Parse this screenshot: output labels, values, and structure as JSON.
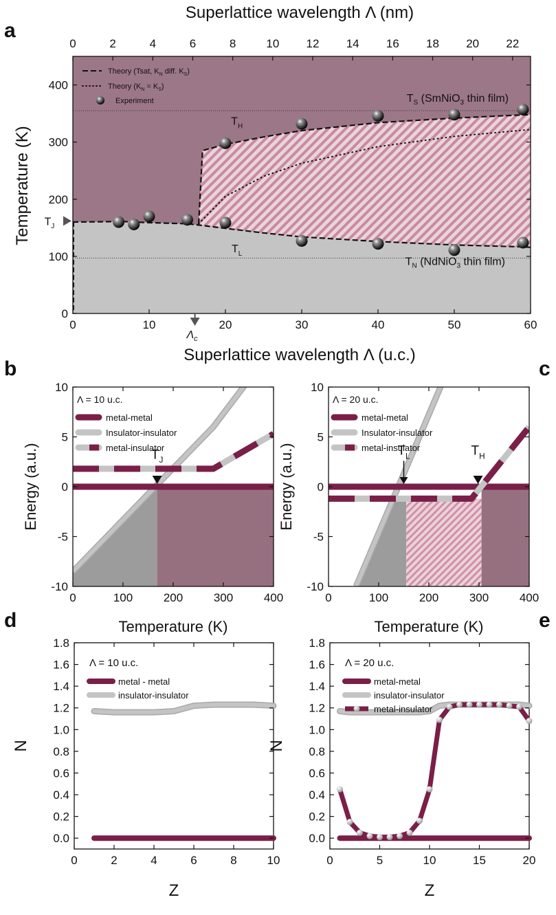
{
  "colors": {
    "metal": "#7a1f48",
    "insulator": "#c4c4c4",
    "phase_top": "#9c7788",
    "phase_bottom": "#c4c4c4",
    "hatch": "#c98aa0",
    "dark_gray": "#8e8e8e"
  },
  "chart_data": [
    {
      "panel": "a",
      "type": "scatter",
      "xlabel": "Superlattice wavelength Λ (u.c.)",
      "x2label": "Superlattice wavelength Λ (nm)",
      "ylabel": "Temperature (K)",
      "xlim": [
        0,
        60
      ],
      "x2lim": [
        0,
        22.9
      ],
      "ylim": [
        0,
        450
      ],
      "xticks": [
        0,
        10,
        20,
        30,
        40,
        50,
        60
      ],
      "x2ticks": [
        0,
        2,
        4,
        6,
        8,
        10,
        12,
        14,
        16,
        18,
        20,
        22
      ],
      "yticks": [
        0,
        100,
        200,
        300,
        400
      ],
      "legend": [
        "Theory (Tsat, K_N diff. K_S)",
        "Theory (K_N = K_S)",
        "Experiment"
      ],
      "legend_pos": "top-left",
      "experiment_points": [
        [
          6,
          160
        ],
        [
          8,
          156
        ],
        [
          10,
          170
        ],
        [
          15,
          164
        ],
        [
          20,
          159
        ],
        [
          20,
          298
        ],
        [
          30,
          127
        ],
        [
          30,
          332
        ],
        [
          40,
          122
        ],
        [
          40,
          346
        ],
        [
          50,
          111
        ],
        [
          50,
          348
        ],
        [
          59,
          124
        ],
        [
          59,
          357
        ]
      ],
      "TS_line": 355,
      "TN_line": 97,
      "lambda_c": 16,
      "theory_dashed_low": [
        [
          0,
          160
        ],
        [
          6.5,
          161
        ],
        [
          10,
          159
        ],
        [
          15,
          157
        ],
        [
          17,
          154
        ],
        [
          20,
          149
        ],
        [
          25,
          141
        ],
        [
          30,
          134
        ],
        [
          40,
          126
        ],
        [
          50,
          120
        ],
        [
          58,
          117
        ],
        [
          60,
          116
        ]
      ],
      "theory_dashed_high": [
        [
          17,
          285
        ],
        [
          20,
          296
        ],
        [
          25,
          309
        ],
        [
          30,
          320
        ],
        [
          40,
          334
        ],
        [
          50,
          342
        ],
        [
          58,
          347
        ],
        [
          60,
          348
        ]
      ],
      "theory_dashed_jump": [
        [
          16.5,
          157
        ],
        [
          17,
          285
        ]
      ],
      "theory_dotted": [
        [
          16.5,
          157
        ],
        [
          20,
          205
        ],
        [
          25,
          240
        ],
        [
          30,
          263
        ],
        [
          40,
          292
        ],
        [
          50,
          310
        ],
        [
          60,
          322
        ]
      ],
      "annotations": {
        "TS_label": "T",
        "TS_sub": "S",
        "TS_rest": " (SmNiO",
        "TS_sub3": "3",
        "TS_end": " thin film)",
        "TN_label": "T",
        "TN_sub": "N",
        "TN_rest": " (NdNiO",
        "TN_sub3": "3",
        "TN_end": " thin film)",
        "TH": "T",
        "TH_sub": "H",
        "TL": "T",
        "TL_sub": "L",
        "TJ": "T",
        "TJ_sub": "J",
        "lambda_c": "Λ",
        "lambda_c_sub": "c"
      }
    },
    {
      "panel": "b",
      "type": "line",
      "xlabel": "Temperature (K)",
      "ylabel": "Energy (a.u.)",
      "xlim": [
        0,
        400
      ],
      "ylim": [
        -10,
        10
      ],
      "xticks": [
        0,
        100,
        200,
        300,
        400
      ],
      "yticks": [
        -10,
        -5,
        0,
        5,
        10
      ],
      "legend_title": "Λ = 10 u.c.",
      "series": [
        {
          "name": "metal-metal",
          "x": [
            0,
            400
          ],
          "y": [
            0,
            0
          ]
        },
        {
          "name": "Insulator-insulator",
          "x": [
            0,
            280,
            400
          ],
          "y": [
            -8.5,
            6,
            14
          ]
        },
        {
          "name": "metal-insulator",
          "x": [
            0,
            280,
            400
          ],
          "y": [
            1.8,
            1.8,
            5.3
          ]
        }
      ],
      "regions": [
        {
          "from": 0,
          "to": 168,
          "fill": "insulator"
        },
        {
          "from": 168,
          "to": 400,
          "fill": "metal"
        }
      ],
      "annotation": {
        "TJ": "T",
        "TJ_sub": "J",
        "x": 168
      }
    },
    {
      "panel": "c",
      "type": "line",
      "xlabel": "Temperature (K)",
      "ylabel": "Energy (a.u.)",
      "xlim": [
        0,
        400
      ],
      "ylim": [
        -10,
        10
      ],
      "xticks": [
        0,
        100,
        200,
        300,
        400
      ],
      "yticks": [
        -10,
        -5,
        0,
        5,
        10
      ],
      "legend_title": "Λ = 20 u.c.",
      "series": [
        {
          "name": "metal-metal",
          "x": [
            0,
            400
          ],
          "y": [
            0,
            0
          ]
        },
        {
          "name": "Insulator-insulator",
          "x": [
            55,
            240
          ],
          "y": [
            -10,
            12
          ]
        },
        {
          "name": "metal-insulator",
          "x": [
            0,
            285,
            400
          ],
          "y": [
            -1.2,
            -1.2,
            6
          ]
        }
      ],
      "regions": [
        {
          "from": 0,
          "to": 155,
          "fill": "insulator"
        },
        {
          "from": 155,
          "to": 305,
          "fill": "hatch"
        },
        {
          "from": 305,
          "to": 400,
          "fill": "metal"
        }
      ],
      "annotation": {
        "TL": "T",
        "TL_sub": "L",
        "TL_x": 150,
        "TH": "T",
        "TH_sub": "H",
        "TH_x": 298
      }
    },
    {
      "panel": "d",
      "type": "line",
      "xlabel": "Z",
      "ylabel": "N",
      "xlim": [
        0,
        10
      ],
      "ylim": [
        -0.1,
        1.8
      ],
      "xticks": [
        0,
        2,
        4,
        6,
        8,
        10
      ],
      "yticks": [
        0.0,
        0.2,
        0.4,
        0.6,
        0.8,
        1.0,
        1.2,
        1.4,
        1.6,
        1.8
      ],
      "legend_title": "Λ = 10 u.c.",
      "series": [
        {
          "name": "metal - metal",
          "x": [
            1,
            10
          ],
          "y": [
            0,
            0
          ]
        },
        {
          "name": "insulator-insulator",
          "x": [
            1,
            2,
            3,
            4,
            5,
            6,
            7,
            8,
            9,
            10
          ],
          "y": [
            1.17,
            1.16,
            1.16,
            1.16,
            1.17,
            1.22,
            1.23,
            1.23,
            1.23,
            1.22
          ]
        }
      ]
    },
    {
      "panel": "e",
      "type": "line",
      "xlabel": "Z",
      "ylabel": "N",
      "xlim": [
        0,
        20
      ],
      "ylim": [
        -0.1,
        1.8
      ],
      "xticks": [
        0,
        5,
        10,
        15,
        20
      ],
      "yticks": [
        0.0,
        0.2,
        0.4,
        0.6,
        0.8,
        1.0,
        1.2,
        1.4,
        1.6,
        1.8
      ],
      "legend_title": "Λ = 20 u.c.",
      "series": [
        {
          "name": "metal-metal",
          "x": [
            1,
            20
          ],
          "y": [
            0,
            0
          ]
        },
        {
          "name": "insulator-insulator",
          "x": [
            1,
            2,
            3,
            4,
            5,
            6,
            7,
            8,
            9,
            10,
            11,
            12,
            13,
            14,
            15,
            16,
            17,
            18,
            19,
            20
          ],
          "y": [
            1.17,
            1.16,
            1.16,
            1.16,
            1.16,
            1.16,
            1.16,
            1.16,
            1.16,
            1.17,
            1.22,
            1.23,
            1.23,
            1.23,
            1.23,
            1.23,
            1.23,
            1.23,
            1.23,
            1.22
          ]
        },
        {
          "name": "metal-insulator",
          "x": [
            1,
            2,
            3,
            4,
            5,
            6,
            7,
            8,
            9,
            10,
            11,
            12,
            13,
            14,
            15,
            16,
            17,
            18,
            19,
            20
          ],
          "y": [
            0.45,
            0.15,
            0.05,
            0.02,
            0.01,
            0.01,
            0.02,
            0.05,
            0.16,
            0.45,
            1.09,
            1.21,
            1.23,
            1.23,
            1.23,
            1.23,
            1.23,
            1.22,
            1.21,
            1.08
          ]
        }
      ]
    }
  ],
  "panel_labels": [
    "a",
    "b",
    "c",
    "d",
    "e"
  ]
}
